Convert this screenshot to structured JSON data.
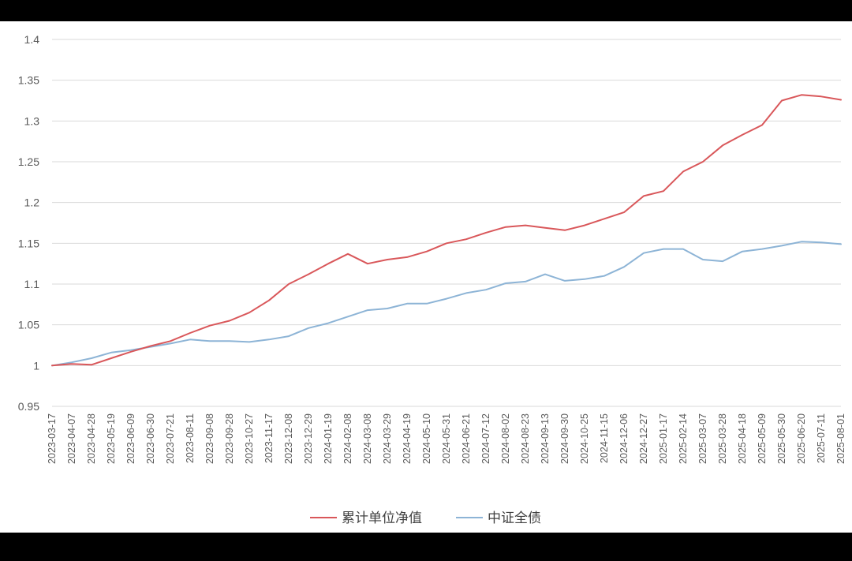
{
  "chart_data": {
    "type": "line",
    "title": "",
    "xlabel": "",
    "ylabel": "",
    "ylim": [
      0.95,
      1.4
    ],
    "y_ticks": [
      "0.95",
      "1",
      "1.05",
      "1.1",
      "1.15",
      "1.2",
      "1.25",
      "1.3",
      "1.35",
      "1.4"
    ],
    "grid": true,
    "legend_position": "bottom",
    "categories": [
      "2023-03-17",
      "2023-04-07",
      "2023-04-28",
      "2023-05-19",
      "2023-06-09",
      "2023-06-30",
      "2023-07-21",
      "2023-08-11",
      "2023-09-08",
      "2023-09-28",
      "2023-10-27",
      "2023-11-17",
      "2023-12-08",
      "2023-12-29",
      "2024-01-19",
      "2024-02-08",
      "2024-03-08",
      "2024-03-29",
      "2024-04-19",
      "2024-05-10",
      "2024-05-31",
      "2024-06-21",
      "2024-07-12",
      "2024-08-02",
      "2024-08-23",
      "2024-09-13",
      "2024-09-30",
      "2024-10-25",
      "2024-11-15",
      "2024-12-06",
      "2024-12-27",
      "2025-01-17",
      "2025-02-14",
      "2025-03-07",
      "2025-03-28",
      "2025-04-18",
      "2025-05-09",
      "2025-05-30",
      "2025-06-20",
      "2025-07-11",
      "2025-08-01"
    ],
    "series": [
      {
        "name": "累计单位净值",
        "color": "#d9575a",
        "values": [
          1.0,
          1.002,
          1.001,
          1.009,
          1.017,
          1.024,
          1.03,
          1.04,
          1.049,
          1.055,
          1.065,
          1.08,
          1.1,
          1.112,
          1.125,
          1.137,
          1.125,
          1.13,
          1.133,
          1.14,
          1.15,
          1.155,
          1.163,
          1.17,
          1.172,
          1.169,
          1.166,
          1.172,
          1.18,
          1.188,
          1.208,
          1.214,
          1.238,
          1.25,
          1.27,
          1.283,
          1.295,
          1.325,
          1.332,
          1.33,
          1.326
        ]
      },
      {
        "name": "中证全债",
        "color": "#8db4d6",
        "values": [
          1.0,
          1.004,
          1.009,
          1.016,
          1.019,
          1.023,
          1.027,
          1.032,
          1.03,
          1.03,
          1.029,
          1.032,
          1.036,
          1.046,
          1.052,
          1.06,
          1.068,
          1.07,
          1.076,
          1.076,
          1.082,
          1.089,
          1.093,
          1.101,
          1.103,
          1.112,
          1.104,
          1.106,
          1.11,
          1.121,
          1.138,
          1.143,
          1.143,
          1.13,
          1.128,
          1.14,
          1.143,
          1.147,
          1.152,
          1.151,
          1.149
        ]
      }
    ]
  }
}
